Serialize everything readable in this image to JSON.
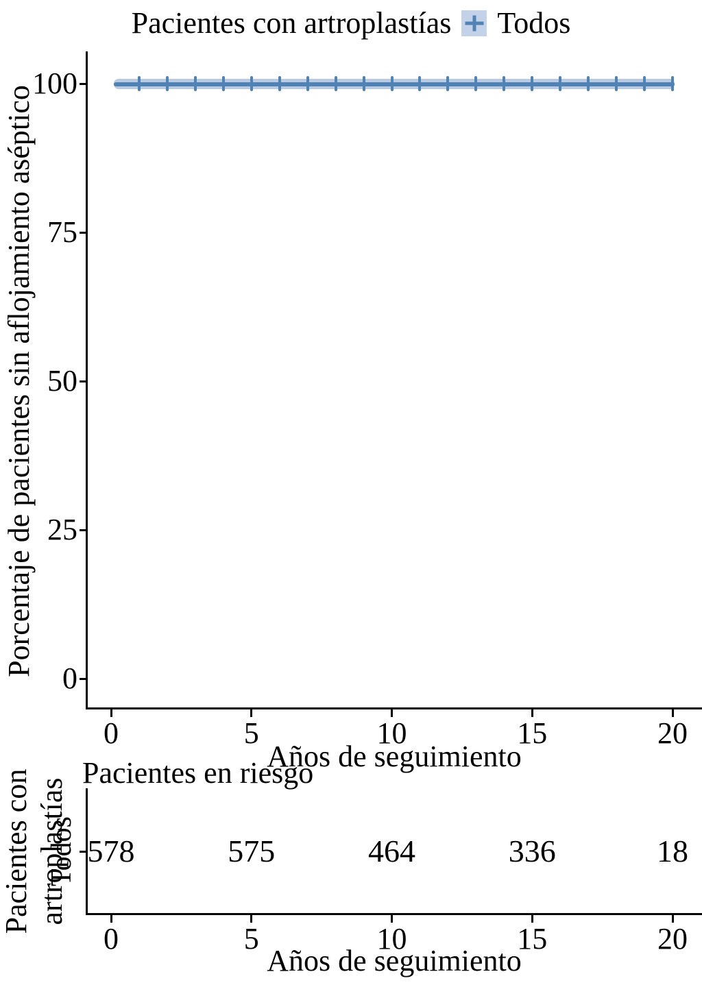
{
  "legend": {
    "title": "Pacientes con artroplastías",
    "item_label": "Todos"
  },
  "km_plot": {
    "ylabel": "Porcentaje de pacientes sin aflojamiento aséptico",
    "xlabel": "Años de seguimiento"
  },
  "risk_table": {
    "title": "Pacientes en riesgo",
    "outer_ylabel": "Pacientes con artroplastías",
    "row_label": "Todos",
    "xlabel": "Años de seguimiento"
  },
  "colors": {
    "line": "#5182b4",
    "ribbon": "#b9cbe2",
    "legend_key_bg": "#c3d2e8",
    "axis": "#000000"
  },
  "chart_data": [
    {
      "type": "line",
      "title": "",
      "legend_title": "Pacientes con artroplastías",
      "xlabel": "Años de seguimiento",
      "ylabel": "Porcentaje de pacientes sin aflojamiento aséptico",
      "xlim": [
        0,
        20
      ],
      "ylim": [
        0,
        100
      ],
      "xticks": [
        0,
        5,
        10,
        15,
        20
      ],
      "yticks": [
        0,
        25,
        50,
        75,
        100
      ],
      "grid": false,
      "legend_position": "top",
      "series": [
        {
          "name": "Todos",
          "x": [
            0,
            20
          ],
          "y": [
            100,
            100
          ],
          "ci_lower": [
            99.4,
            99.4
          ],
          "ci_upper": [
            100,
            100
          ],
          "censor_years": [
            1,
            2,
            3,
            4,
            5,
            6,
            7,
            8,
            9,
            10,
            11,
            12,
            13,
            14,
            15,
            16,
            17,
            18,
            19,
            20
          ]
        }
      ]
    },
    {
      "type": "table",
      "title": "Pacientes en riesgo",
      "ylabel": "Pacientes con artroplastías",
      "xlabel": "Años de seguimiento",
      "x": [
        0,
        5,
        10,
        15,
        20
      ],
      "rows": [
        {
          "label": "Todos",
          "values": [
            578,
            575,
            464,
            336,
            18
          ]
        }
      ]
    }
  ]
}
